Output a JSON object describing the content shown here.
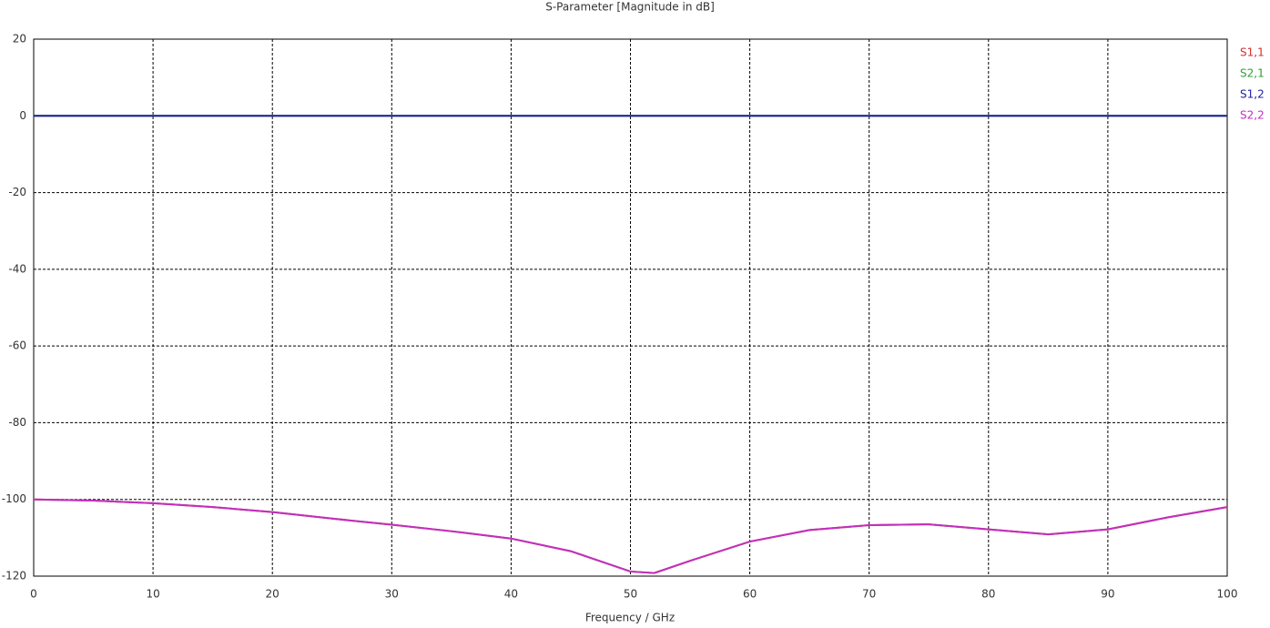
{
  "chart_data": {
    "type": "line",
    "title": "S-Parameter [Magnitude in dB]",
    "x_label": "Frequency / GHz",
    "x": [
      0,
      5,
      10,
      15,
      20,
      25,
      30,
      35,
      40,
      45,
      50,
      52,
      55,
      60,
      65,
      70,
      75,
      80,
      85,
      90,
      95,
      100
    ],
    "series": [
      {
        "name": "S1,1",
        "color": "#d03030",
        "values": [
          -100,
          -100.3,
          -101,
          -102,
          -103.3,
          -105,
          -106.6,
          -108.3,
          -110.2,
          -113.5,
          -118.8,
          -119.2,
          -116,
          -111,
          -108,
          -106.7,
          -106.5,
          -107.8,
          -109.1,
          -107.8,
          -104.7,
          -102
        ]
      },
      {
        "name": "S2,1",
        "color": "#30a030",
        "values": [
          0,
          0,
          0,
          0,
          0,
          0,
          0,
          0,
          0,
          0,
          0,
          0,
          0,
          0,
          0,
          0,
          0,
          0,
          0,
          0,
          0,
          0
        ]
      },
      {
        "name": "S1,2",
        "color": "#2020a0",
        "values": [
          0,
          0,
          0,
          0,
          0,
          0,
          0,
          0,
          0,
          0,
          0,
          0,
          0,
          0,
          0,
          0,
          0,
          0,
          0,
          0,
          0,
          0
        ]
      },
      {
        "name": "S2,2",
        "color": "#c030c0",
        "values": [
          -100,
          -100.3,
          -101,
          -102,
          -103.3,
          -105,
          -106.6,
          -108.3,
          -110.2,
          -113.5,
          -118.8,
          -119.2,
          -116,
          -111,
          -108,
          -106.7,
          -106.5,
          -107.8,
          -109.1,
          -107.8,
          -104.7,
          -102
        ]
      }
    ],
    "xlim": [
      0,
      100
    ],
    "xticks": [
      0,
      10,
      20,
      30,
      40,
      50,
      60,
      70,
      80,
      90,
      100
    ],
    "ylim": [
      -120,
      20
    ],
    "yticks": [
      -120,
      -100,
      -80,
      -60,
      -40,
      -20,
      0,
      20
    ],
    "grid": true
  }
}
